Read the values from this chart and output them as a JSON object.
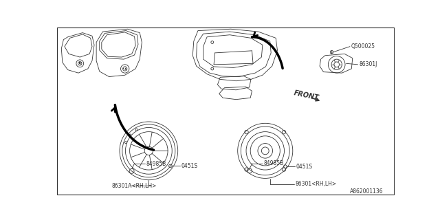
{
  "background_color": "#ffffff",
  "line_color": "#333333",
  "labels": {
    "part_screw": "Q500025",
    "part_j": "86301J",
    "part_84985b_left": "84985B",
    "part_0451s_left": "0451S",
    "part_86301a": "86301A<RH,LH>",
    "part_84985b_right": "84985B",
    "part_0451s_right": "0451S",
    "part_86301": "86301<RH,LH>",
    "front": "FRONT",
    "diagram_id": "A862001136"
  },
  "fig_width": 6.4,
  "fig_height": 3.2,
  "dpi": 100
}
